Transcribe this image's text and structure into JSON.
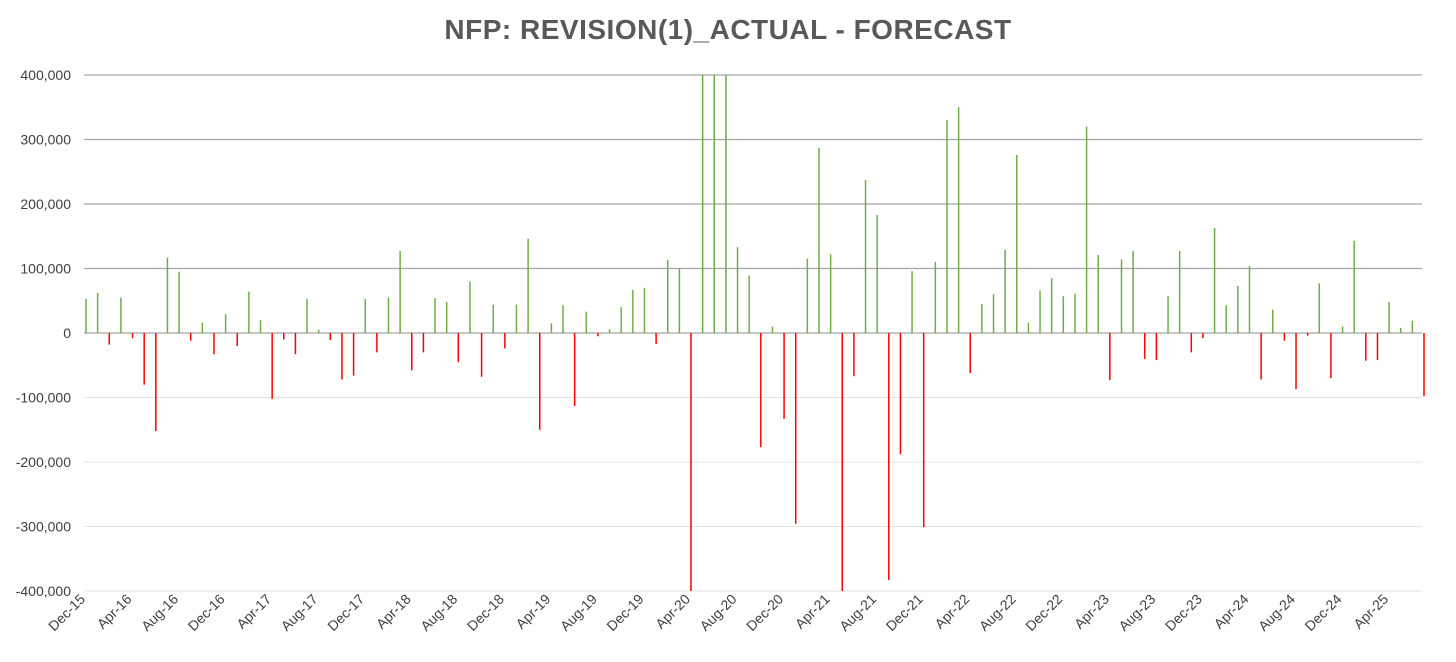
{
  "chart_data": {
    "type": "bar",
    "title": "NFP: REVISION(1)_ACTUAL - FORECAST",
    "xlabel": "",
    "ylabel": "",
    "ylim": [
      -400000,
      400000
    ],
    "yticks": [
      400000,
      300000,
      200000,
      100000,
      0,
      -100000,
      -200000,
      -300000,
      -400000
    ],
    "ytick_labels": [
      "400,000",
      "300,000",
      "200,000",
      "100,000",
      "0",
      "-100,000",
      "-200,000",
      "-300,000",
      "-400,000"
    ],
    "xtick_labels": [
      "Dec-15",
      "Apr-16",
      "Aug-16",
      "Dec-16",
      "Apr-17",
      "Aug-17",
      "Dec-17",
      "Apr-18",
      "Aug-18",
      "Dec-18",
      "Apr-19",
      "Aug-19",
      "Dec-19",
      "Apr-20",
      "Aug-20",
      "Dec-20",
      "Apr-21",
      "Aug-21",
      "Dec-21",
      "Apr-22",
      "Aug-22",
      "Dec-22",
      "Apr-23",
      "Aug-23",
      "Dec-23",
      "Apr-24",
      "Aug-24",
      "Dec-24",
      "Apr-25"
    ],
    "positive_color": "#70ad47",
    "negative_color": "#ff0000",
    "grid": true,
    "series": [
      {
        "name": "Revision(1) Actual - Forecast",
        "start": "Dec-15",
        "frequency": "monthly",
        "values": [
          53000,
          62000,
          -18000,
          55000,
          -8000,
          -80000,
          -152000,
          117000,
          95000,
          -12000,
          16000,
          -33000,
          29000,
          -20000,
          64000,
          20000,
          -102000,
          -10000,
          -33000,
          53000,
          5000,
          -11000,
          -72000,
          -66000,
          53000,
          -30000,
          55000,
          127000,
          -58000,
          -30000,
          54000,
          48000,
          -45000,
          80000,
          -68000,
          44000,
          -24000,
          44000,
          146000,
          -150000,
          15000,
          43000,
          -113000,
          33000,
          -5000,
          6000,
          40000,
          67000,
          70000,
          -17000,
          113000,
          100000,
          -400000,
          400000,
          400000,
          400000,
          133000,
          89000,
          -177000,
          10000,
          -133000,
          -296000,
          115000,
          287000,
          122000,
          -400000,
          -67000,
          237000,
          183000,
          -383000,
          -188000,
          96000,
          -301000,
          110000,
          330000,
          350000,
          -62000,
          45000,
          60000,
          129000,
          276000,
          16000,
          66000,
          85000,
          57000,
          61000,
          320000,
          121000,
          -73000,
          114000,
          127000,
          -40000,
          -42000,
          57000,
          127000,
          -30000,
          -8000,
          163000,
          43000,
          73000,
          104000,
          -72000,
          36000,
          -12000,
          -87000,
          -4000,
          77000,
          -70000,
          10000,
          143000,
          -43000,
          -42000,
          48000,
          8000,
          19000,
          -98000
        ]
      }
    ]
  }
}
